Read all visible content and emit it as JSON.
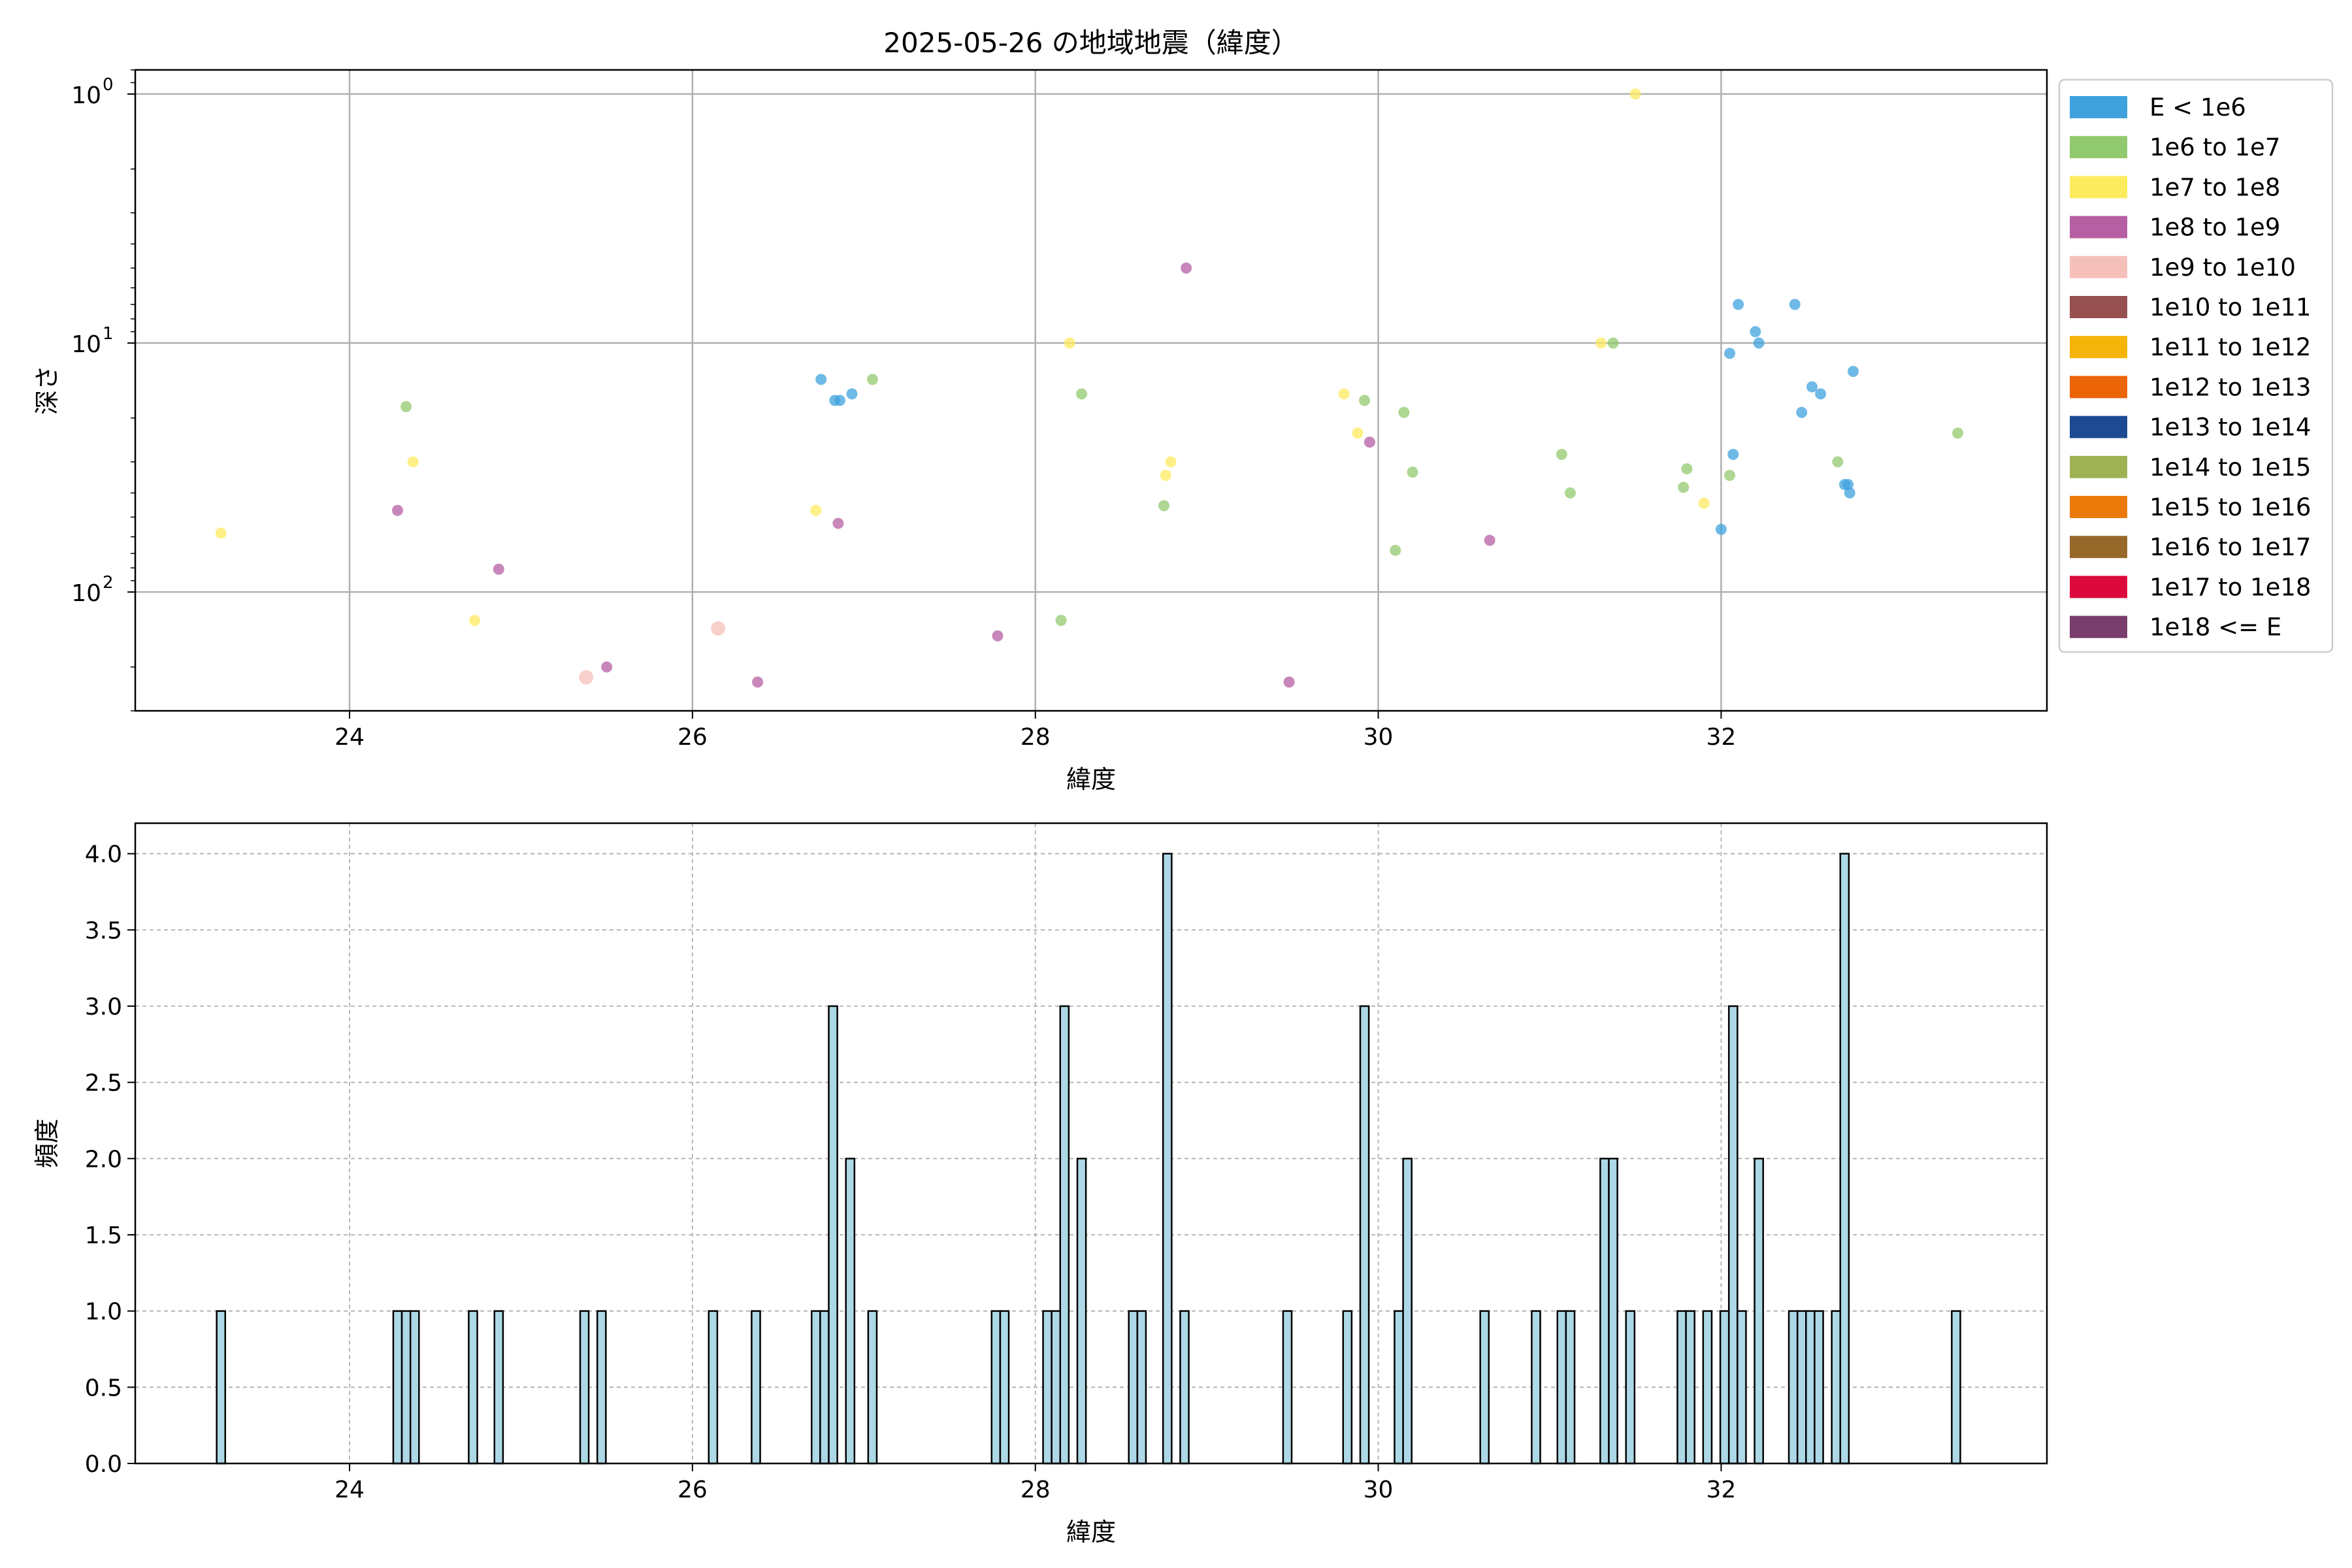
{
  "chart_data": [
    {
      "type": "scatter",
      "title": "2025-05-26 の地域地震（緯度）",
      "xlabel": "緯度",
      "ylabel": "深さ",
      "xlim": [
        22.75,
        33.9
      ],
      "ylim": [
        300,
        0.8
      ],
      "yscale": "log",
      "y_inverted": true,
      "grid": true,
      "xticks": [
        24,
        26,
        28,
        30,
        32
      ],
      "xtick_labels": [
        "24",
        "26",
        "28",
        "30",
        "32"
      ],
      "yticks": [
        1,
        10,
        100
      ],
      "ytick_labels": [
        "10",
        "10",
        "10"
      ],
      "ytick_exponents": [
        "0",
        "1",
        "2"
      ],
      "legend": {
        "placement": "outside-right",
        "entries": [
          {
            "label": "E < 1e6",
            "color": "#3FA2DD"
          },
          {
            "label": "1e6 to 1e7",
            "color": "#91C96E"
          },
          {
            "label": "1e7 to 1e8",
            "color": "#FDEB5E"
          },
          {
            "label": "1e8 to 1e9",
            "color": "#B65FA3"
          },
          {
            "label": "1e9 to 1e10",
            "color": "#F6C0BA"
          },
          {
            "label": "1e10 to 1e11",
            "color": "#965050"
          },
          {
            "label": "1e11 to 1e12",
            "color": "#F5B40A"
          },
          {
            "label": "1e12 to 1e13",
            "color": "#EC6408"
          },
          {
            "label": "1e13 to 1e14",
            "color": "#1E4A94"
          },
          {
            "label": "1e14 to 1e15",
            "color": "#9EB254"
          },
          {
            "label": "1e15 to 1e16",
            "color": "#EC7A0A"
          },
          {
            "label": "1e16 to 1e17",
            "color": "#96692A"
          },
          {
            "label": "1e17 to 1e18",
            "color": "#DC0A3C"
          },
          {
            "label": "1e18 <= E",
            "color": "#793E6C"
          }
        ]
      },
      "points": [
        {
          "x": 26.75,
          "y": 14,
          "c": 0
        },
        {
          "x": 26.83,
          "y": 17,
          "c": 0
        },
        {
          "x": 26.86,
          "y": 17,
          "c": 0
        },
        {
          "x": 26.93,
          "y": 16,
          "c": 0
        },
        {
          "x": 32.0,
          "y": 56,
          "c": 0
        },
        {
          "x": 32.05,
          "y": 11,
          "c": 0
        },
        {
          "x": 32.07,
          "y": 28,
          "c": 0
        },
        {
          "x": 32.1,
          "y": 7,
          "c": 0
        },
        {
          "x": 32.2,
          "y": 9,
          "c": 0
        },
        {
          "x": 32.22,
          "y": 10,
          "c": 0
        },
        {
          "x": 32.43,
          "y": 7,
          "c": 0
        },
        {
          "x": 32.47,
          "y": 19,
          "c": 0
        },
        {
          "x": 32.53,
          "y": 15,
          "c": 0
        },
        {
          "x": 32.58,
          "y": 16,
          "c": 0
        },
        {
          "x": 32.72,
          "y": 37,
          "c": 0
        },
        {
          "x": 32.74,
          "y": 37,
          "c": 0
        },
        {
          "x": 32.75,
          "y": 40,
          "c": 0
        },
        {
          "x": 32.77,
          "y": 13,
          "c": 0
        },
        {
          "x": 24.33,
          "y": 18,
          "c": 1
        },
        {
          "x": 27.05,
          "y": 14,
          "c": 1
        },
        {
          "x": 28.15,
          "y": 130,
          "c": 1
        },
        {
          "x": 28.27,
          "y": 16,
          "c": 1
        },
        {
          "x": 28.75,
          "y": 45,
          "c": 1
        },
        {
          "x": 29.92,
          "y": 17,
          "c": 1
        },
        {
          "x": 30.1,
          "y": 68,
          "c": 1
        },
        {
          "x": 30.15,
          "y": 19,
          "c": 1
        },
        {
          "x": 30.2,
          "y": 33,
          "c": 1
        },
        {
          "x": 31.07,
          "y": 28,
          "c": 1
        },
        {
          "x": 31.12,
          "y": 40,
          "c": 1
        },
        {
          "x": 31.37,
          "y": 10,
          "c": 1
        },
        {
          "x": 31.78,
          "y": 38,
          "c": 1
        },
        {
          "x": 31.8,
          "y": 32,
          "c": 1
        },
        {
          "x": 32.05,
          "y": 34,
          "c": 1
        },
        {
          "x": 32.68,
          "y": 30,
          "c": 1
        },
        {
          "x": 33.38,
          "y": 23,
          "c": 1
        },
        {
          "x": 23.25,
          "y": 58,
          "c": 2
        },
        {
          "x": 24.37,
          "y": 30,
          "c": 2
        },
        {
          "x": 24.73,
          "y": 130,
          "c": 2
        },
        {
          "x": 26.72,
          "y": 47,
          "c": 2
        },
        {
          "x": 28.2,
          "y": 10,
          "c": 2
        },
        {
          "x": 28.76,
          "y": 34,
          "c": 2
        },
        {
          "x": 28.79,
          "y": 30,
          "c": 2
        },
        {
          "x": 29.8,
          "y": 16,
          "c": 2
        },
        {
          "x": 29.88,
          "y": 23,
          "c": 2
        },
        {
          "x": 31.3,
          "y": 10,
          "c": 2
        },
        {
          "x": 31.5,
          "y": 1,
          "c": 2
        },
        {
          "x": 31.9,
          "y": 44,
          "c": 2
        },
        {
          "x": 24.28,
          "y": 47,
          "c": 3
        },
        {
          "x": 24.87,
          "y": 81,
          "c": 3
        },
        {
          "x": 25.5,
          "y": 200,
          "c": 3
        },
        {
          "x": 26.38,
          "y": 230,
          "c": 3
        },
        {
          "x": 26.85,
          "y": 53,
          "c": 3
        },
        {
          "x": 27.78,
          "y": 150,
          "c": 3
        },
        {
          "x": 28.88,
          "y": 5,
          "c": 3
        },
        {
          "x": 29.48,
          "y": 230,
          "c": 3
        },
        {
          "x": 29.95,
          "y": 25,
          "c": 3
        },
        {
          "x": 30.65,
          "y": 62,
          "c": 3
        },
        {
          "x": 25.38,
          "y": 220,
          "c": 4
        },
        {
          "x": 26.15,
          "y": 140,
          "c": 4
        }
      ]
    },
    {
      "type": "bar",
      "xlabel": "緯度",
      "ylabel": "頻度",
      "xlim": [
        22.75,
        33.9
      ],
      "ylim": [
        0,
        4.2
      ],
      "grid": true,
      "bar_width": 0.05,
      "bar_color": "#ADD8E6",
      "xticks": [
        24,
        26,
        28,
        30,
        32
      ],
      "xtick_labels": [
        "24",
        "26",
        "28",
        "30",
        "32"
      ],
      "yticks": [
        0,
        0.5,
        1,
        1.5,
        2,
        2.5,
        3,
        3.5,
        4
      ],
      "ytick_labels": [
        "0.0",
        "0.5",
        "1.0",
        "1.5",
        "2.0",
        "2.5",
        "3.0",
        "3.5",
        "4.0"
      ],
      "bars": [
        [
          23.25,
          1
        ],
        [
          24.28,
          1
        ],
        [
          24.33,
          1
        ],
        [
          24.38,
          1
        ],
        [
          24.72,
          1
        ],
        [
          24.87,
          1
        ],
        [
          25.37,
          1
        ],
        [
          25.47,
          1
        ],
        [
          26.12,
          1
        ],
        [
          26.37,
          1
        ],
        [
          26.72,
          1
        ],
        [
          26.77,
          1
        ],
        [
          26.82,
          3
        ],
        [
          26.92,
          2
        ],
        [
          27.05,
          1
        ],
        [
          27.77,
          1
        ],
        [
          27.82,
          1
        ],
        [
          28.07,
          1
        ],
        [
          28.12,
          1
        ],
        [
          28.17,
          3
        ],
        [
          28.27,
          2
        ],
        [
          28.57,
          1
        ],
        [
          28.62,
          1
        ],
        [
          28.77,
          4
        ],
        [
          28.87,
          1
        ],
        [
          29.47,
          1
        ],
        [
          29.82,
          1
        ],
        [
          29.92,
          3
        ],
        [
          30.12,
          1
        ],
        [
          30.17,
          2
        ],
        [
          30.62,
          1
        ],
        [
          30.92,
          1
        ],
        [
          31.07,
          1
        ],
        [
          31.12,
          1
        ],
        [
          31.32,
          2
        ],
        [
          31.37,
          2
        ],
        [
          31.47,
          1
        ],
        [
          31.77,
          1
        ],
        [
          31.82,
          1
        ],
        [
          31.92,
          1
        ],
        [
          32.02,
          1
        ],
        [
          32.07,
          3
        ],
        [
          32.12,
          1
        ],
        [
          32.22,
          2
        ],
        [
          32.42,
          1
        ],
        [
          32.47,
          1
        ],
        [
          32.52,
          1
        ],
        [
          32.57,
          1
        ],
        [
          32.67,
          1
        ],
        [
          32.72,
          4
        ],
        [
          33.37,
          1
        ]
      ]
    }
  ]
}
